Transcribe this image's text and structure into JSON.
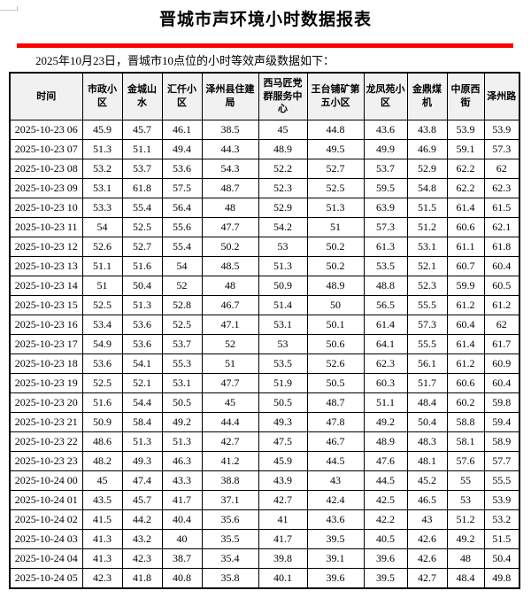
{
  "page": {
    "title": "晋城市声环境小时数据报表",
    "subtitle": "2025年10月23日，晋城市10点位的小时等效声级数据如下：",
    "accent_color": "#fe0000",
    "header_bg_color": "#f1f1f1",
    "border_color": "#000000"
  },
  "table": {
    "columns": [
      "时间",
      "市政小区",
      "金城山水",
      "汇仟小区",
      "泽州县住建局",
      "西马匠党群服务中心",
      "王台铺矿第五小区",
      "龙凤苑小区",
      "金鼎煤机",
      "中原西街",
      "泽州路"
    ],
    "rows": [
      [
        "2025-10-23 06",
        "45.9",
        "45.7",
        "46.1",
        "38.5",
        "45",
        "44.8",
        "43.6",
        "43.8",
        "53.9",
        "53.9"
      ],
      [
        "2025-10-23 07",
        "51.3",
        "51.1",
        "49.4",
        "44.3",
        "48.9",
        "49.5",
        "49.9",
        "46.9",
        "59.1",
        "57.3"
      ],
      [
        "2025-10-23 08",
        "53.2",
        "53.7",
        "53.6",
        "54.3",
        "52.2",
        "52.7",
        "53.7",
        "52.9",
        "62.2",
        "62"
      ],
      [
        "2025-10-23 09",
        "53.1",
        "61.8",
        "57.5",
        "48.7",
        "52.3",
        "52.5",
        "59.5",
        "54.8",
        "62.2",
        "62.3"
      ],
      [
        "2025-10-23 10",
        "53.3",
        "55.4",
        "56.4",
        "48",
        "52.9",
        "51.3",
        "63.9",
        "51.5",
        "61.4",
        "61.5"
      ],
      [
        "2025-10-23 11",
        "54",
        "52.5",
        "55.6",
        "47.7",
        "54.2",
        "51",
        "57.3",
        "51.2",
        "60.6",
        "62.1"
      ],
      [
        "2025-10-23 12",
        "52.6",
        "52.7",
        "55.4",
        "50.2",
        "53",
        "50.2",
        "61.3",
        "53.1",
        "61.1",
        "61.8"
      ],
      [
        "2025-10-23 13",
        "51.1",
        "51.6",
        "54",
        "48.5",
        "51.3",
        "50.2",
        "53.5",
        "52.1",
        "60.7",
        "60.4"
      ],
      [
        "2025-10-23 14",
        "51",
        "50.4",
        "52",
        "48",
        "50.9",
        "48.9",
        "48.8",
        "52.3",
        "59.9",
        "60.5"
      ],
      [
        "2025-10-23 15",
        "52.5",
        "51.3",
        "52.8",
        "46.7",
        "51.4",
        "50",
        "56.5",
        "55.5",
        "61.2",
        "61.2"
      ],
      [
        "2025-10-23 16",
        "53.4",
        "53.6",
        "52.5",
        "47.1",
        "53.1",
        "50.1",
        "61.4",
        "57.3",
        "60.4",
        "62"
      ],
      [
        "2025-10-23 17",
        "54.9",
        "53.6",
        "53.7",
        "52",
        "53",
        "50.6",
        "64.1",
        "55.5",
        "61.4",
        "61.7"
      ],
      [
        "2025-10-23 18",
        "53.6",
        "54.1",
        "55.3",
        "51",
        "53.5",
        "52.6",
        "62.3",
        "56.1",
        "61.2",
        "60.9"
      ],
      [
        "2025-10-23 19",
        "52.5",
        "52.1",
        "53.1",
        "47.7",
        "51.9",
        "50.5",
        "60.3",
        "51.7",
        "60.6",
        "60.4"
      ],
      [
        "2025-10-23 20",
        "51.6",
        "54.4",
        "50.5",
        "45",
        "50.5",
        "48.7",
        "51.1",
        "48.4",
        "60.2",
        "59.8"
      ],
      [
        "2025-10-23 21",
        "50.9",
        "58.4",
        "49.2",
        "44.4",
        "49.3",
        "47.8",
        "49.2",
        "50.4",
        "58.8",
        "59.4"
      ],
      [
        "2025-10-23 22",
        "48.6",
        "51.3",
        "51.3",
        "42.7",
        "47.5",
        "46.7",
        "48.9",
        "48.3",
        "58.1",
        "58.9"
      ],
      [
        "2025-10-23 23",
        "48.2",
        "49.3",
        "46.3",
        "41.2",
        "45.9",
        "44.5",
        "47.6",
        "48.1",
        "57.6",
        "57.7"
      ],
      [
        "2025-10-24 00",
        "45",
        "47.4",
        "43.3",
        "38.8",
        "43.9",
        "43",
        "44.5",
        "45.2",
        "55",
        "55.5"
      ],
      [
        "2025-10-24 01",
        "43.5",
        "45.7",
        "41.7",
        "37.1",
        "42.7",
        "42.4",
        "42.5",
        "46.5",
        "53",
        "53.9"
      ],
      [
        "2025-10-24 02",
        "41.5",
        "44.2",
        "40.4",
        "35.6",
        "41",
        "43.6",
        "42.2",
        "43",
        "51.2",
        "53.2"
      ],
      [
        "2025-10-24 03",
        "41.3",
        "43.2",
        "40",
        "35.5",
        "41.7",
        "39.5",
        "40.5",
        "42.6",
        "49.2",
        "51.5"
      ],
      [
        "2025-10-24 04",
        "41.3",
        "42.3",
        "38.7",
        "35.4",
        "39.8",
        "39.1",
        "39.6",
        "42.6",
        "48",
        "50.4"
      ],
      [
        "2025-10-24 05",
        "42.3",
        "41.8",
        "40.8",
        "35.8",
        "40.1",
        "39.6",
        "39.5",
        "42.7",
        "48.4",
        "49.8"
      ]
    ]
  }
}
